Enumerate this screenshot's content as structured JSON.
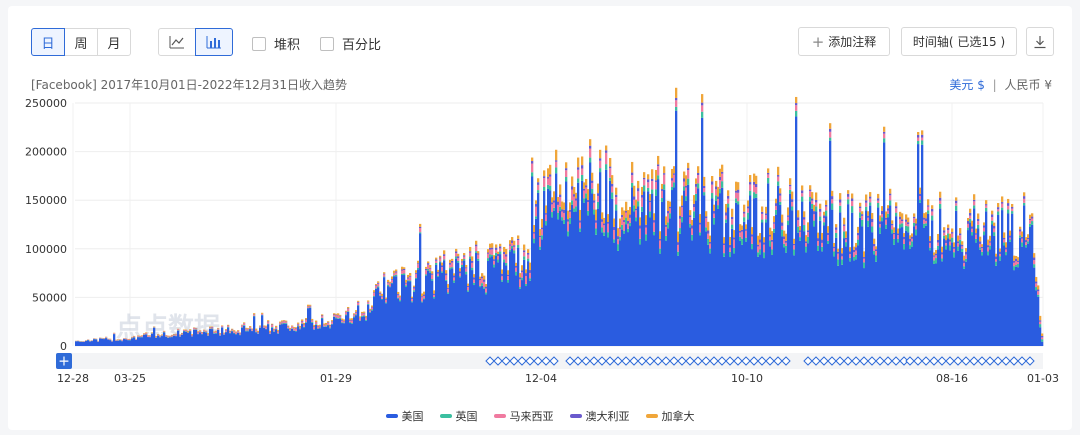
{
  "toolbar": {
    "period_buttons": [
      "日",
      "周",
      "月"
    ],
    "active_period": "日",
    "chart_type_buttons": [
      "line-chart-icon",
      "bar-chart-icon"
    ],
    "active_chart_type": "bar-chart-icon",
    "stack_label": "堆积",
    "percent_label": "百分比",
    "add_note_label": "添加注释",
    "timeline_label": "时间轴( 已选15 )",
    "download_icon": "download-icon"
  },
  "subtitle": "[Facebook]  2017年10月01日-2022年12月31日收入趋势",
  "currency": {
    "usd": "美元 $",
    "separator": "|",
    "cny": "人民币 ¥"
  },
  "watermark": "点点数据",
  "colors": {
    "美国": "#2a5ce0",
    "英国": "#3bbfa0",
    "马来西亚": "#f07aa0",
    "澳大利亚": "#6a5acd",
    "加拿大": "#f0a63a",
    "accent": "#2f6bd8"
  },
  "chart_data": {
    "type": "bar",
    "stacked": true,
    "title": "",
    "xlabel": "",
    "ylabel": "",
    "ylim": [
      0,
      250000
    ],
    "yticks": [
      0,
      50000,
      100000,
      150000,
      200000,
      250000
    ],
    "ytick_labels": [
      "0",
      "50000",
      "100000",
      "150000",
      "200000",
      "250000"
    ],
    "xtick_labels": [
      "12-28",
      "03-25",
      "01-29",
      "12-04",
      "10-10",
      "08-16",
      "01-03"
    ],
    "x_range": [
      "2017-10-01",
      "2022-12-31"
    ],
    "grid": true,
    "legend_position": "bottom",
    "series": [
      {
        "name": "美国",
        "profile": [
          [
            0,
            6000
          ],
          [
            0.05,
            9000
          ],
          [
            0.1,
            15000
          ],
          [
            0.2,
            22000
          ],
          [
            0.27,
            30000
          ],
          [
            0.3,
            45000
          ],
          [
            0.32,
            70000
          ],
          [
            0.38,
            85000
          ],
          [
            0.44,
            100000
          ],
          [
            0.47,
            105000
          ],
          [
            0.48,
            175000
          ],
          [
            0.52,
            190000
          ],
          [
            0.56,
            175000
          ],
          [
            0.65,
            160000
          ],
          [
            0.74,
            165000
          ],
          [
            0.77,
            145000
          ],
          [
            0.99,
            140000
          ],
          [
            1.0,
            5000
          ]
        ]
      },
      {
        "name": "英国",
        "profile": [
          [
            0,
            200
          ],
          [
            0.3,
            800
          ],
          [
            0.45,
            2500
          ],
          [
            0.5,
            5000
          ],
          [
            0.8,
            5000
          ],
          [
            1.0,
            3000
          ]
        ]
      },
      {
        "name": "马来西亚",
        "profile": [
          [
            0,
            200
          ],
          [
            0.3,
            2000
          ],
          [
            0.45,
            5000
          ],
          [
            0.5,
            9000
          ],
          [
            0.65,
            7000
          ],
          [
            0.8,
            4000
          ],
          [
            1.0,
            3000
          ]
        ]
      },
      {
        "name": "澳大利亚",
        "profile": [
          [
            0,
            100
          ],
          [
            0.3,
            600
          ],
          [
            0.5,
            2500
          ],
          [
            0.8,
            2500
          ],
          [
            1.0,
            2000
          ]
        ]
      },
      {
        "name": "加拿大",
        "profile": [
          [
            0,
            200
          ],
          [
            0.3,
            1500
          ],
          [
            0.45,
            4000
          ],
          [
            0.5,
            8000
          ],
          [
            0.65,
            8000
          ],
          [
            0.8,
            5000
          ],
          [
            1.0,
            4000
          ]
        ]
      }
    ]
  },
  "timeline": {
    "add_icon": "plus-icon"
  }
}
